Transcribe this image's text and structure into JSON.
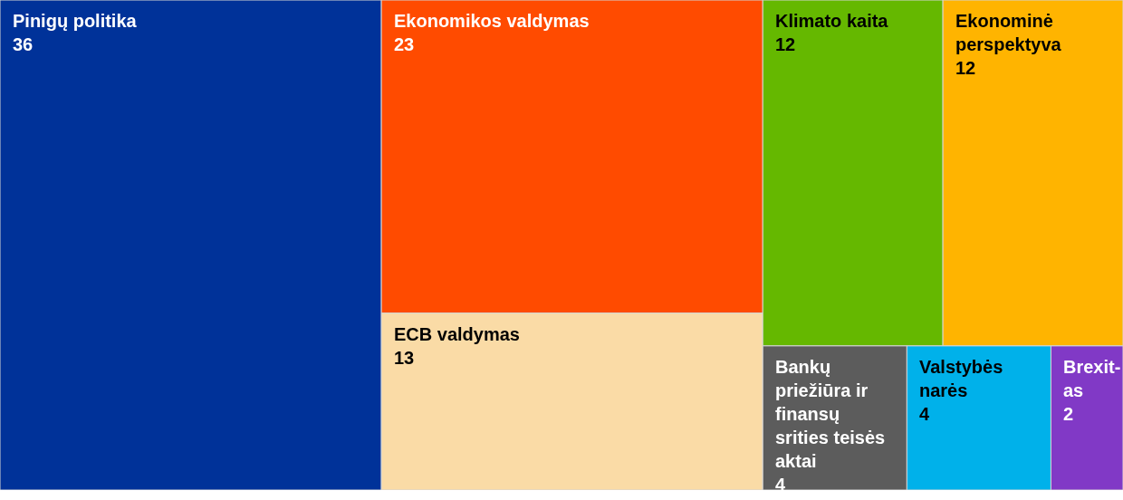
{
  "chart_data": {
    "type": "other",
    "categories": [
      "Pinigų politika",
      "Ekonomikos valdymas",
      "ECB valdymas",
      "Klimato kaita",
      "Ekonominė perspektyva",
      "Bankų priežiūra ir finansų srities teisės aktai",
      "Valstybės narės",
      "Brexit-as"
    ],
    "values": [
      36,
      23,
      13,
      12,
      12,
      4,
      4,
      2
    ],
    "colors": [
      "#003299",
      "#ff4b00",
      "#fadba6",
      "#65b800",
      "#ffb400",
      "#5c5c5c",
      "#00b1ea",
      "#8139c6"
    ],
    "data_labels": true
  }
}
